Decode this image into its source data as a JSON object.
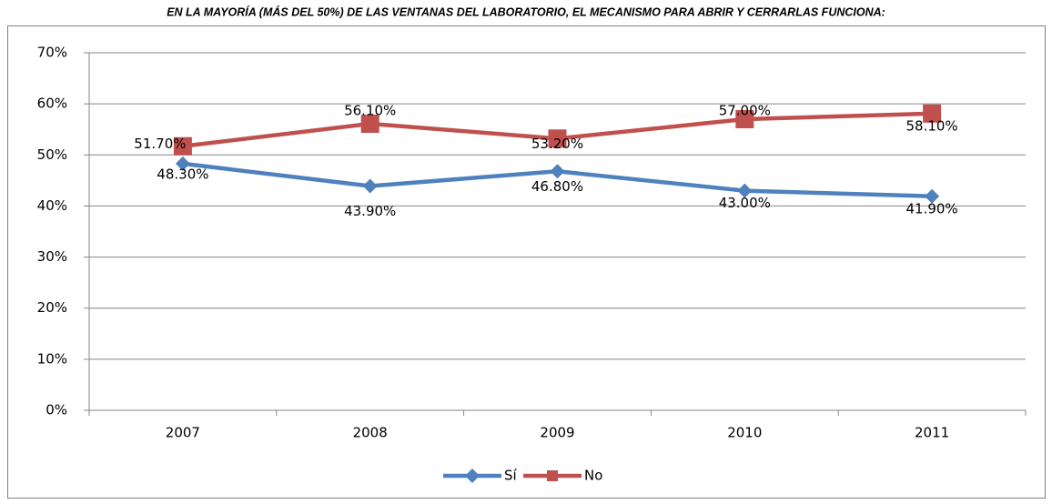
{
  "chart_data": {
    "type": "line",
    "title": "EN LA MAYORÍA (MÁS DEL 50%) DE LAS VENTANAS DEL LABORATORIO, EL MECANISMO PARA ABRIR Y CERRARLAS FUNCIONA:",
    "categories": [
      "2007",
      "2008",
      "2009",
      "2010",
      "2011"
    ],
    "series": [
      {
        "name": "Sí",
        "color": "#4f81bd",
        "marker": "diamond",
        "values": [
          48.3,
          43.9,
          46.8,
          43.0,
          41.9
        ],
        "value_labels": [
          "48.30%",
          "43.90%",
          "46.80%",
          "43.00%",
          "41.90%"
        ]
      },
      {
        "name": "No",
        "color": "#c0504d",
        "marker": "square",
        "values": [
          51.7,
          56.1,
          53.2,
          57.0,
          58.1
        ],
        "value_labels": [
          "51.70%",
          "56.10%",
          "53.20%",
          "57.00%",
          "58.10%"
        ]
      }
    ],
    "ylim": [
      0,
      70
    ],
    "yticks": [
      {
        "value": 0,
        "label": "0%"
      },
      {
        "value": 10,
        "label": "10%"
      },
      {
        "value": 20,
        "label": "20%"
      },
      {
        "value": 30,
        "label": "30%"
      },
      {
        "value": 40,
        "label": "40%"
      },
      {
        "value": 50,
        "label": "50%"
      },
      {
        "value": 60,
        "label": "60%"
      },
      {
        "value": 70,
        "label": "70%"
      }
    ],
    "grid": true,
    "legend": "bottom"
  }
}
